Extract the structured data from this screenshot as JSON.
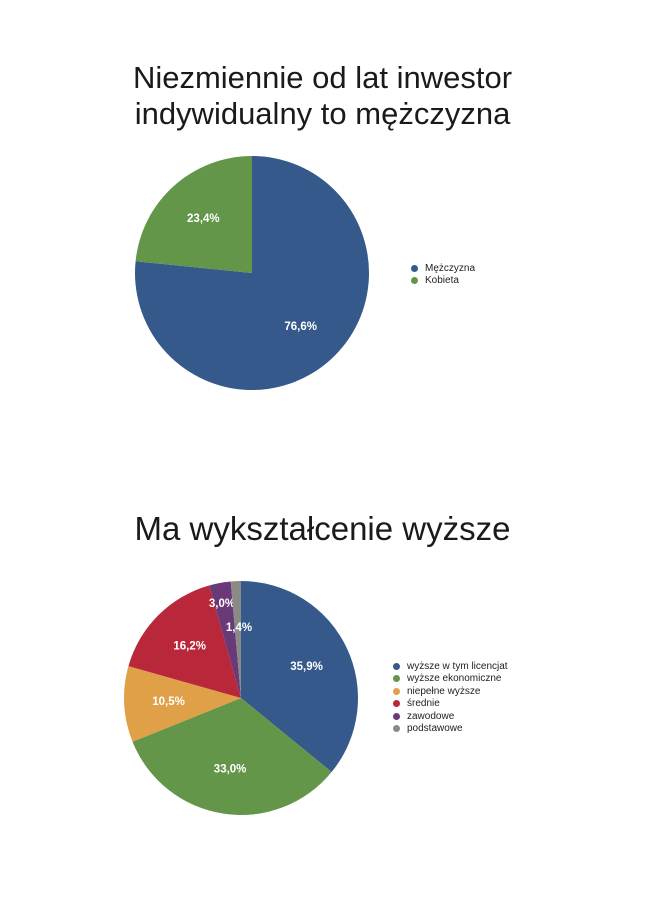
{
  "chart_data": [
    {
      "type": "pie",
      "title_lines": [
        "Niezmiennie od lat inwestor",
        "indywidualny to mężczyzna"
      ],
      "categories": [
        "Mężczyzna",
        "Kobieta"
      ],
      "values": [
        76.6,
        23.4
      ],
      "labels": [
        "76,6%",
        "23,4%"
      ],
      "colors": [
        "#34598a",
        "#64964a"
      ],
      "legend_position": "right"
    },
    {
      "type": "pie",
      "title": "Ma wykształcenie wyższe",
      "categories": [
        "wyższe w tym licencjat",
        "wyższe ekonomiczne",
        "niepełne wyższe",
        "średnie",
        "zawodowe",
        "podstawowe"
      ],
      "values": [
        35.9,
        33.0,
        10.5,
        16.2,
        3.0,
        1.4
      ],
      "labels": [
        "35,9%",
        "33,0%",
        "10,5%",
        "16,2%",
        "3,0%",
        "1,4%"
      ],
      "colors": [
        "#34598a",
        "#64964a",
        "#e0a048",
        "#b9273a",
        "#6a3a78",
        "#8a8a86"
      ],
      "legend_position": "right"
    }
  ]
}
